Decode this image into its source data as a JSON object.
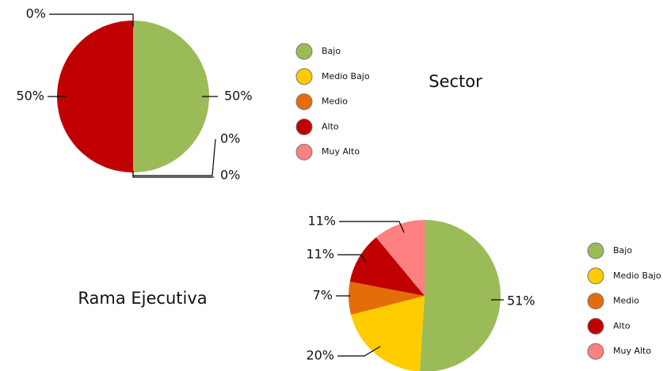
{
  "chart_data": [
    {
      "type": "pie",
      "title": "Sector",
      "categories": [
        "Bajo",
        "Medio Bajo",
        "Medio",
        "Alto",
        "Muy Alto"
      ],
      "values": [
        50,
        0,
        0,
        50,
        0
      ],
      "value_labels": [
        "50%",
        "0%",
        "0%",
        "50%",
        "0%"
      ],
      "colors": [
        "#9bbb59",
        "#ffcc00",
        "#e46c0a",
        "#c00000",
        "#ff8080"
      ]
    },
    {
      "type": "pie",
      "title": "Rama Ejecutiva",
      "categories": [
        "Bajo",
        "Medio Bajo",
        "Medio",
        "Alto",
        "Muy Alto"
      ],
      "values": [
        51,
        20,
        7,
        11,
        11
      ],
      "value_labels": [
        "51%",
        "20%",
        "7%",
        "11%",
        "11%"
      ],
      "colors": [
        "#9bbb59",
        "#ffcc00",
        "#e46c0a",
        "#c00000",
        "#ff8080"
      ]
    }
  ]
}
